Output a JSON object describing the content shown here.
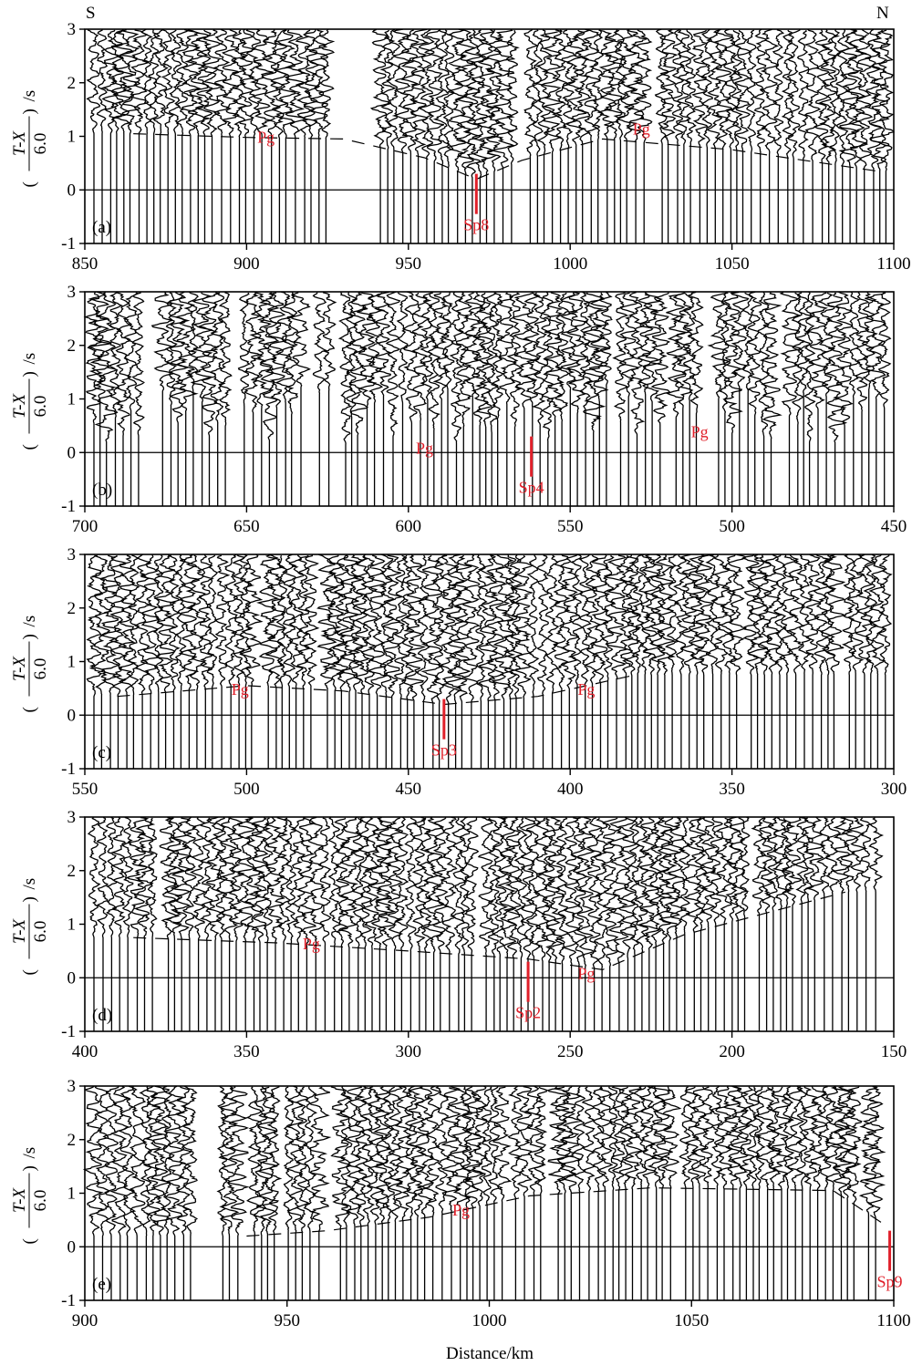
{
  "orientation": {
    "left": "S",
    "right": "N"
  },
  "xlabel": "Distance/km",
  "ylabel": {
    "numerator": "T-X",
    "denominator": "6.0",
    "unit": "s"
  },
  "colors": {
    "trace": "#000000",
    "annotation": "#e0202a",
    "axis": "#000000"
  },
  "chart_data": [
    {
      "type": "line",
      "panel": "(a)",
      "xlim": [
        850,
        1100
      ],
      "ylim": [
        -1,
        3
      ],
      "x_ticks": [
        850,
        900,
        950,
        1000,
        1050,
        1100
      ],
      "y_ticks": [
        -1,
        0,
        1,
        2,
        3
      ],
      "reversed": false,
      "shot_point": {
        "label": "Sp8",
        "x": 971
      },
      "phase_labels": [
        {
          "text": "Pg",
          "x": 906,
          "y": 0.95
        },
        {
          "text": "Pg",
          "x": 1022,
          "y": 1.1
        }
      ],
      "pg_curve": [
        [
          865,
          1.05
        ],
        [
          900,
          0.98
        ],
        [
          930,
          0.95
        ],
        [
          955,
          0.6
        ],
        [
          971,
          0.2
        ],
        [
          985,
          0.55
        ],
        [
          1010,
          0.95
        ],
        [
          1050,
          0.75
        ],
        [
          1095,
          0.35
        ]
      ],
      "gaps": [
        [
          926,
          938
        ]
      ],
      "seed": 11
    },
    {
      "type": "line",
      "panel": "(b)",
      "xlim": [
        700,
        450
      ],
      "ylim": [
        -1,
        3
      ],
      "x_ticks": [
        700,
        650,
        600,
        550,
        500,
        450
      ],
      "y_ticks": [
        -1,
        0,
        1,
        2,
        3
      ],
      "reversed": true,
      "shot_point": {
        "label": "Sp4",
        "x": 562
      },
      "phase_labels": [
        {
          "text": "Pg",
          "x": 595,
          "y": 0.05
        },
        {
          "text": "Pg",
          "x": 510,
          "y": 0.35
        }
      ],
      "pg_curve": [],
      "gaps": [],
      "seed": 23
    },
    {
      "type": "line",
      "panel": "(c)",
      "xlim": [
        550,
        300
      ],
      "ylim": [
        -1,
        3
      ],
      "x_ticks": [
        550,
        500,
        450,
        400,
        350,
        300
      ],
      "y_ticks": [
        -1,
        0,
        1,
        2,
        3
      ],
      "reversed": true,
      "shot_point": {
        "label": "Sp3",
        "x": 439
      },
      "phase_labels": [
        {
          "text": "Pg",
          "x": 502,
          "y": 0.45
        },
        {
          "text": "Pg",
          "x": 395,
          "y": 0.45
        }
      ],
      "pg_curve": [
        [
          540,
          0.35
        ],
        [
          500,
          0.55
        ],
        [
          470,
          0.45
        ],
        [
          439,
          0.2
        ],
        [
          410,
          0.35
        ],
        [
          380,
          0.75
        ]
      ],
      "gaps": [],
      "seed": 37
    },
    {
      "type": "line",
      "panel": "(d)",
      "xlim": [
        400,
        150
      ],
      "ylim": [
        -1,
        3
      ],
      "x_ticks": [
        400,
        350,
        300,
        250,
        200,
        150
      ],
      "y_ticks": [
        -1,
        0,
        1,
        2,
        3
      ],
      "reversed": true,
      "shot_point": {
        "label": "Sp2",
        "x": 263
      },
      "phase_labels": [
        {
          "text": "Pg",
          "x": 330,
          "y": 0.6
        },
        {
          "text": "Pg",
          "x": 245,
          "y": 0.05
        }
      ],
      "pg_curve": [
        [
          385,
          0.75
        ],
        [
          340,
          0.65
        ],
        [
          300,
          0.5
        ],
        [
          263,
          0.35
        ],
        [
          240,
          0.15
        ],
        [
          215,
          0.8
        ],
        [
          165,
          1.6
        ]
      ],
      "gaps": [],
      "seed": 53
    },
    {
      "type": "line",
      "panel": "(e)",
      "xlim": [
        900,
        1100
      ],
      "ylim": [
        -1,
        3
      ],
      "x_ticks": [
        900,
        950,
        1000,
        1050,
        1100
      ],
      "y_ticks": [
        -1,
        0,
        1,
        2,
        3
      ],
      "reversed": false,
      "shot_point": {
        "label": "Sp9",
        "x": 1099
      },
      "phase_labels": [
        {
          "text": "Pg",
          "x": 993,
          "y": 0.65
        }
      ],
      "pg_curve": [
        [
          940,
          0.2
        ],
        [
          960,
          0.3
        ],
        [
          985,
          0.55
        ],
        [
          1010,
          0.95
        ],
        [
          1040,
          1.1
        ],
        [
          1085,
          1.05
        ],
        [
          1098,
          0.4
        ]
      ],
      "gaps": [
        [
          928,
          933
        ]
      ],
      "seed": 71
    }
  ]
}
